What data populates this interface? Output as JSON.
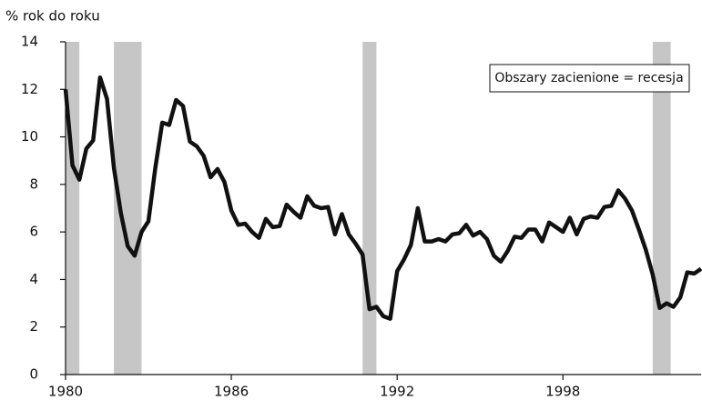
{
  "chart_data": {
    "type": "line",
    "y_label": "% rok do roku",
    "annotation": "Obszary zacienione = recesja",
    "x": [
      1980,
      1980.25,
      1980.5,
      1980.75,
      1981,
      1981.25,
      1981.5,
      1981.75,
      1982,
      1982.25,
      1982.5,
      1982.75,
      1983,
      1983.25,
      1983.5,
      1983.75,
      1984,
      1984.25,
      1984.5,
      1984.75,
      1985,
      1985.25,
      1985.5,
      1985.75,
      1986,
      1986.25,
      1986.5,
      1986.75,
      1987,
      1987.25,
      1987.5,
      1987.75,
      1988,
      1988.25,
      1988.5,
      1988.75,
      1989,
      1989.25,
      1989.5,
      1989.75,
      1990,
      1990.25,
      1990.5,
      1990.75,
      1991,
      1991.25,
      1991.5,
      1991.75,
      1992,
      1992.25,
      1992.5,
      1992.75,
      1993,
      1993.25,
      1993.5,
      1993.75,
      1994,
      1994.25,
      1994.5,
      1994.75,
      1995,
      1995.25,
      1995.5,
      1995.75,
      1996,
      1996.25,
      1996.5,
      1996.75,
      1997,
      1997.25,
      1997.5,
      1997.75,
      1998,
      1998.25,
      1998.5,
      1998.75,
      1999,
      1999.25,
      1999.5,
      1999.75,
      2000,
      2000.25,
      2000.5,
      2000.75,
      2001,
      2001.25,
      2001.5,
      2001.75,
      2002,
      2002.25,
      2002.5,
      2002.75,
      2003
    ],
    "values": [
      12.0,
      8.8,
      8.2,
      9.5,
      9.85,
      12.5,
      11.6,
      8.7,
      6.8,
      5.4,
      5.0,
      6.0,
      6.45,
      8.7,
      10.6,
      10.5,
      11.55,
      11.3,
      9.8,
      9.6,
      9.2,
      8.3,
      8.65,
      8.1,
      6.9,
      6.3,
      6.35,
      6.0,
      5.75,
      6.55,
      6.2,
      6.25,
      7.15,
      6.85,
      6.6,
      7.5,
      7.1,
      7.0,
      7.05,
      5.9,
      6.75,
      5.9,
      5.5,
      5.05,
      2.75,
      2.85,
      2.45,
      2.35,
      4.35,
      4.85,
      5.45,
      7.0,
      5.6,
      5.6,
      5.7,
      5.6,
      5.9,
      5.95,
      6.3,
      5.85,
      6.0,
      5.7,
      5.0,
      4.75,
      5.2,
      5.8,
      5.75,
      6.1,
      6.1,
      5.6,
      6.4,
      6.2,
      6.0,
      6.6,
      5.9,
      6.55,
      6.65,
      6.6,
      7.05,
      7.1,
      7.75,
      7.4,
      6.9,
      6.1,
      5.25,
      4.2,
      2.8,
      3.0,
      2.85,
      3.25,
      4.3,
      4.25,
      4.45
    ],
    "color": "#111111",
    "recessions": [
      [
        1980,
        1980.5
      ],
      [
        1981.75,
        1982.75
      ],
      [
        1990.75,
        1991.25
      ],
      [
        2001.25,
        2001.9
      ]
    ],
    "recession_color": "#c6c6c6",
    "xlim": [
      1980,
      2003
    ],
    "xticks": [
      1980,
      1986,
      1992,
      1998
    ],
    "ylim": [
      0,
      14
    ],
    "yticks": [
      0,
      2,
      4,
      6,
      8,
      10,
      12,
      14
    ]
  }
}
